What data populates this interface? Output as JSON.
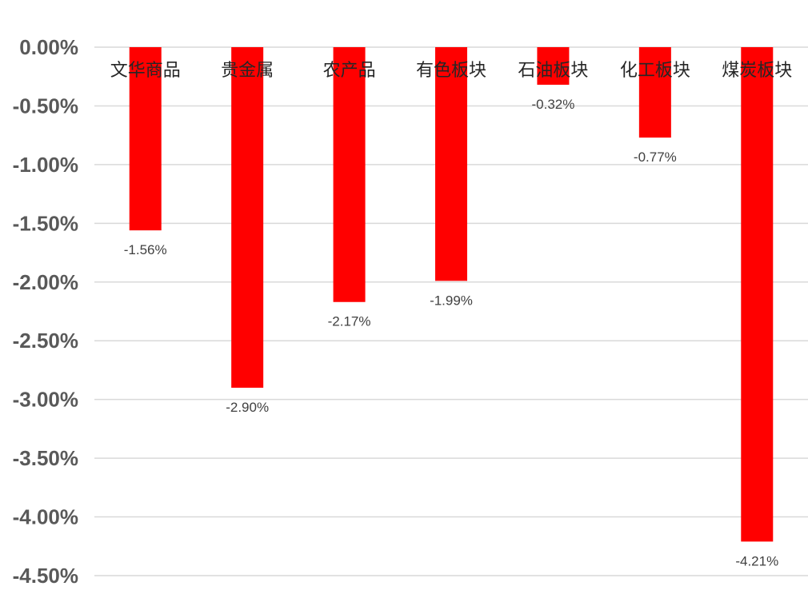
{
  "chart_data": {
    "type": "bar",
    "categories": [
      "文华商品",
      "贵金属",
      "农产品",
      "有色板块",
      "石油板块",
      "化工板块",
      "煤炭板块"
    ],
    "values": [
      -1.56,
      -2.9,
      -2.17,
      -1.99,
      -0.32,
      -0.77,
      -4.21
    ],
    "data_labels": [
      "-1.56%",
      "-2.90%",
      "-2.17%",
      "-1.99%",
      "-0.32%",
      "-0.77%",
      "-4.21%"
    ],
    "yticks": [
      0,
      -0.5,
      -1.0,
      -1.5,
      -2.0,
      -2.5,
      -3.0,
      -3.5,
      -4.0,
      -4.5
    ],
    "ytick_labels": [
      "0.00%",
      "-0.50%",
      "-1.00%",
      "-1.50%",
      "-2.00%",
      "-2.50%",
      "-3.00%",
      "-3.50%",
      "-4.00%",
      "-4.50%"
    ],
    "ylim": [
      -4.5,
      0
    ],
    "title": "",
    "xlabel": "",
    "ylabel": "",
    "grid": true,
    "legend": "none",
    "bar_color": "#ff0000",
    "category_label_position": "top"
  }
}
